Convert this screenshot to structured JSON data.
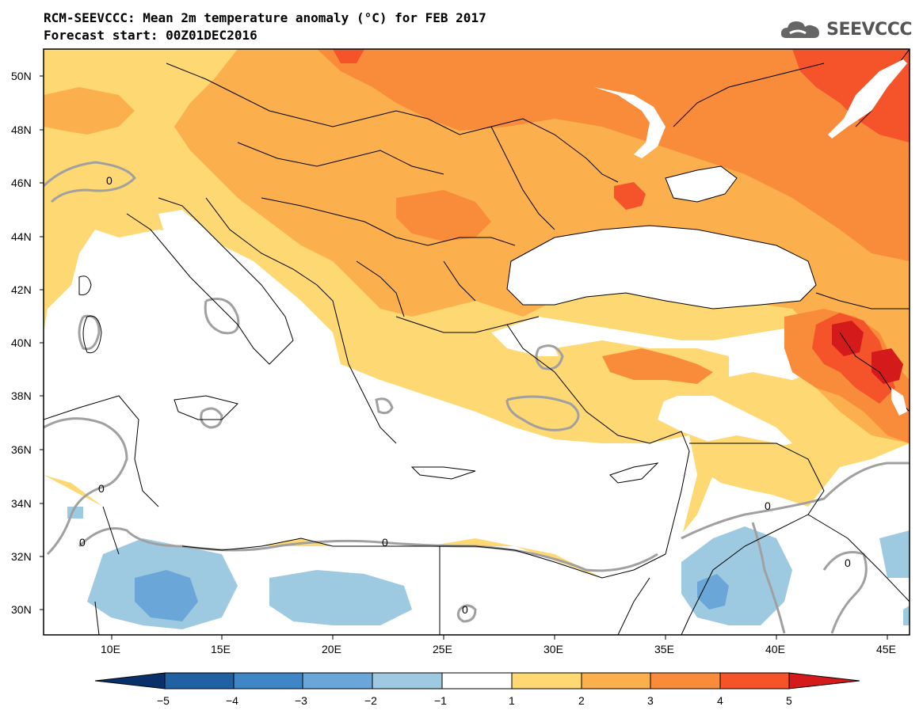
{
  "header": {
    "title_line1": "RCM-SEEVCCC: Mean 2m temperature anomaly (°C) for FEB 2017",
    "title_line2": "Forecast start: 00Z01DEC2016"
  },
  "logo": {
    "icon": "cloud-icon",
    "text": "SEEVCCC"
  },
  "axes": {
    "lat_labels": [
      "50N",
      "48N",
      "46N",
      "44N",
      "42N",
      "40N",
      "38N",
      "36N",
      "34N",
      "32N",
      "30N"
    ],
    "lon_labels": [
      "10E",
      "15E",
      "20E",
      "25E",
      "30E",
      "35E",
      "40E",
      "45E"
    ]
  },
  "colorbar": {
    "tick_labels": [
      "−5",
      "−4",
      "−3",
      "−2",
      "−1",
      "1",
      "2",
      "3",
      "4",
      "5"
    ],
    "colors": [
      "#08306b",
      "#1f61a3",
      "#3f86c6",
      "#6aa6d8",
      "#9ecae1",
      "#ffffff",
      "#fdd873",
      "#fbb04d",
      "#f98c3b",
      "#f5532a",
      "#d41a1a"
    ]
  },
  "contour_label": "0"
}
